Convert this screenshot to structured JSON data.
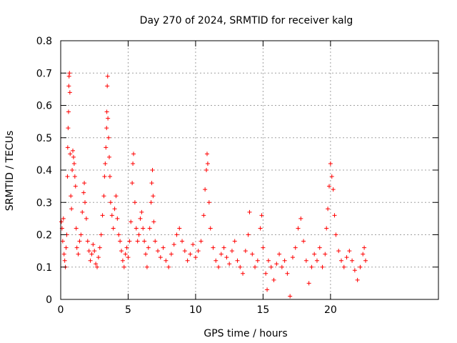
{
  "chart_data": {
    "type": "scatter",
    "title": "Day 270 of 2024, SRMTID for receiver kalg",
    "xlabel": "GPS time / hours",
    "ylabel": "SRMTID / TECUs",
    "xlim": [
      0,
      28
    ],
    "ylim": [
      0,
      0.8
    ],
    "x_ticks": [
      0,
      5,
      10,
      15,
      20
    ],
    "x_tick_labels": [
      "0",
      "5",
      "10",
      "15",
      "20"
    ],
    "y_ticks": [
      0,
      0.1,
      0.2,
      0.3,
      0.4,
      0.5,
      0.6,
      0.7,
      0.8
    ],
    "y_tick_labels": [
      "0",
      "0.1",
      "0.2",
      "0.3",
      "0.4",
      "0.5",
      "0.6",
      "0.7",
      "0.8"
    ],
    "grid": true,
    "marker": "plus",
    "marker_color": "#ff0000",
    "series": [
      {
        "name": "SRMTID",
        "points": [
          [
            0.05,
            0.24
          ],
          [
            0.1,
            0.22
          ],
          [
            0.15,
            0.18
          ],
          [
            0.2,
            0.25
          ],
          [
            0.25,
            0.14
          ],
          [
            0.3,
            0.12
          ],
          [
            0.35,
            0.1
          ],
          [
            0.4,
            0.16
          ],
          [
            0.45,
            0.2
          ],
          [
            0.5,
            0.38
          ],
          [
            0.52,
            0.47
          ],
          [
            0.55,
            0.53
          ],
          [
            0.58,
            0.58
          ],
          [
            0.6,
            0.66
          ],
          [
            0.62,
            0.69
          ],
          [
            0.65,
            0.7
          ],
          [
            0.68,
            0.64
          ],
          [
            0.7,
            0.45
          ],
          [
            0.75,
            0.32
          ],
          [
            0.8,
            0.28
          ],
          [
            0.85,
            0.4
          ],
          [
            0.9,
            0.46
          ],
          [
            0.95,
            0.44
          ],
          [
            1.0,
            0.42
          ],
          [
            1.05,
            0.38
          ],
          [
            1.1,
            0.35
          ],
          [
            1.15,
            0.22
          ],
          [
            1.2,
            0.16
          ],
          [
            1.3,
            0.14
          ],
          [
            1.4,
            0.18
          ],
          [
            1.5,
            0.2
          ],
          [
            1.6,
            0.27
          ],
          [
            1.7,
            0.33
          ],
          [
            1.75,
            0.36
          ],
          [
            1.8,
            0.3
          ],
          [
            1.9,
            0.25
          ],
          [
            2.0,
            0.18
          ],
          [
            2.1,
            0.15
          ],
          [
            2.2,
            0.12
          ],
          [
            2.3,
            0.14
          ],
          [
            2.4,
            0.17
          ],
          [
            2.5,
            0.15
          ],
          [
            2.6,
            0.11
          ],
          [
            2.7,
            0.1
          ],
          [
            2.8,
            0.13
          ],
          [
            2.9,
            0.16
          ],
          [
            3.0,
            0.2
          ],
          [
            3.1,
            0.26
          ],
          [
            3.2,
            0.32
          ],
          [
            3.25,
            0.38
          ],
          [
            3.3,
            0.42
          ],
          [
            3.35,
            0.47
          ],
          [
            3.4,
            0.53
          ],
          [
            3.42,
            0.58
          ],
          [
            3.45,
            0.66
          ],
          [
            3.48,
            0.69
          ],
          [
            3.5,
            0.56
          ],
          [
            3.55,
            0.5
          ],
          [
            3.6,
            0.44
          ],
          [
            3.65,
            0.38
          ],
          [
            3.7,
            0.3
          ],
          [
            3.8,
            0.26
          ],
          [
            3.9,
            0.22
          ],
          [
            4.0,
            0.28
          ],
          [
            4.1,
            0.32
          ],
          [
            4.2,
            0.25
          ],
          [
            4.3,
            0.2
          ],
          [
            4.4,
            0.18
          ],
          [
            4.5,
            0.15
          ],
          [
            4.6,
            0.12
          ],
          [
            4.7,
            0.1
          ],
          [
            4.8,
            0.14
          ],
          [
            4.9,
            0.16
          ],
          [
            5.0,
            0.13
          ],
          [
            5.1,
            0.18
          ],
          [
            5.2,
            0.24
          ],
          [
            5.3,
            0.36
          ],
          [
            5.35,
            0.42
          ],
          [
            5.4,
            0.45
          ],
          [
            5.5,
            0.3
          ],
          [
            5.6,
            0.22
          ],
          [
            5.7,
            0.18
          ],
          [
            5.8,
            0.2
          ],
          [
            5.9,
            0.25
          ],
          [
            6.0,
            0.27
          ],
          [
            6.1,
            0.22
          ],
          [
            6.2,
            0.18
          ],
          [
            6.3,
            0.14
          ],
          [
            6.4,
            0.1
          ],
          [
            6.5,
            0.16
          ],
          [
            6.6,
            0.22
          ],
          [
            6.7,
            0.3
          ],
          [
            6.75,
            0.36
          ],
          [
            6.8,
            0.4
          ],
          [
            6.85,
            0.32
          ],
          [
            6.9,
            0.24
          ],
          [
            7.0,
            0.18
          ],
          [
            7.2,
            0.15
          ],
          [
            7.4,
            0.13
          ],
          [
            7.6,
            0.16
          ],
          [
            7.8,
            0.12
          ],
          [
            8.0,
            0.1
          ],
          [
            8.2,
            0.14
          ],
          [
            8.4,
            0.17
          ],
          [
            8.6,
            0.2
          ],
          [
            8.8,
            0.22
          ],
          [
            9.0,
            0.18
          ],
          [
            9.2,
            0.15
          ],
          [
            9.4,
            0.12
          ],
          [
            9.6,
            0.14
          ],
          [
            9.8,
            0.17
          ],
          [
            10.0,
            0.13
          ],
          [
            10.2,
            0.15
          ],
          [
            10.4,
            0.18
          ],
          [
            10.6,
            0.26
          ],
          [
            10.7,
            0.34
          ],
          [
            10.8,
            0.4
          ],
          [
            10.85,
            0.45
          ],
          [
            10.9,
            0.42
          ],
          [
            11.0,
            0.3
          ],
          [
            11.1,
            0.22
          ],
          [
            11.3,
            0.16
          ],
          [
            11.5,
            0.12
          ],
          [
            11.7,
            0.1
          ],
          [
            11.9,
            0.14
          ],
          [
            12.1,
            0.16
          ],
          [
            12.3,
            0.13
          ],
          [
            12.5,
            0.11
          ],
          [
            12.7,
            0.15
          ],
          [
            12.9,
            0.18
          ],
          [
            13.1,
            0.12
          ],
          [
            13.3,
            0.1
          ],
          [
            13.5,
            0.08
          ],
          [
            13.7,
            0.15
          ],
          [
            13.9,
            0.2
          ],
          [
            14.0,
            0.27
          ],
          [
            14.2,
            0.14
          ],
          [
            14.4,
            0.1
          ],
          [
            14.6,
            0.12
          ],
          [
            14.8,
            0.22
          ],
          [
            14.9,
            0.26
          ],
          [
            15.0,
            0.16
          ],
          [
            15.2,
            0.08
          ],
          [
            15.3,
            0.03
          ],
          [
            15.4,
            0.12
          ],
          [
            15.6,
            0.1
          ],
          [
            15.8,
            0.06
          ],
          [
            16.0,
            0.11
          ],
          [
            16.2,
            0.14
          ],
          [
            16.4,
            0.1
          ],
          [
            16.6,
            0.12
          ],
          [
            16.8,
            0.08
          ],
          [
            17.0,
            0.01
          ],
          [
            17.2,
            0.13
          ],
          [
            17.4,
            0.16
          ],
          [
            17.6,
            0.22
          ],
          [
            17.8,
            0.25
          ],
          [
            18.0,
            0.18
          ],
          [
            18.2,
            0.12
          ],
          [
            18.4,
            0.05
          ],
          [
            18.6,
            0.1
          ],
          [
            18.8,
            0.14
          ],
          [
            19.0,
            0.12
          ],
          [
            19.2,
            0.16
          ],
          [
            19.4,
            0.1
          ],
          [
            19.6,
            0.14
          ],
          [
            19.7,
            0.22
          ],
          [
            19.8,
            0.28
          ],
          [
            19.9,
            0.35
          ],
          [
            20.0,
            0.42
          ],
          [
            20.1,
            0.38
          ],
          [
            20.2,
            0.34
          ],
          [
            20.3,
            0.26
          ],
          [
            20.4,
            0.2
          ],
          [
            20.6,
            0.15
          ],
          [
            20.8,
            0.12
          ],
          [
            21.0,
            0.1
          ],
          [
            21.2,
            0.13
          ],
          [
            21.4,
            0.15
          ],
          [
            21.6,
            0.12
          ],
          [
            21.8,
            0.09
          ],
          [
            22.0,
            0.06
          ],
          [
            22.2,
            0.1
          ],
          [
            22.4,
            0.14
          ],
          [
            22.5,
            0.16
          ],
          [
            22.6,
            0.12
          ]
        ]
      }
    ]
  }
}
